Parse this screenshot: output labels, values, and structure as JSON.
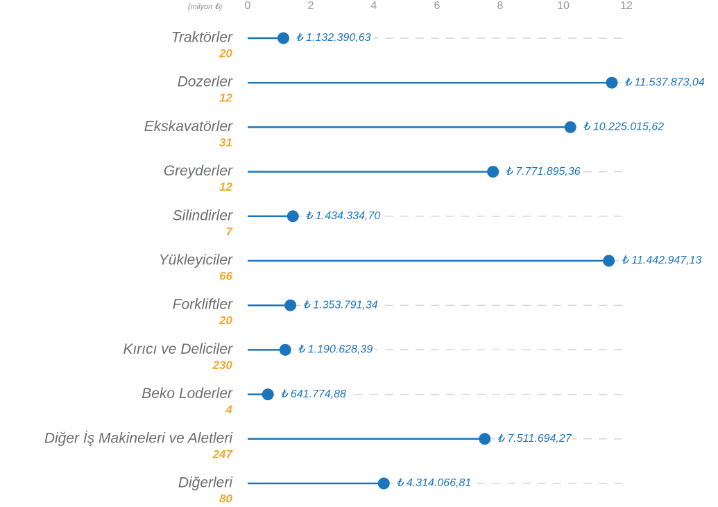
{
  "chart_data": {
    "type": "lollipop",
    "x_axis_label": "(milyon ₺)",
    "categories": [
      "Traktörler",
      "Dozerler",
      "Ekskavatörler",
      "Greyderler",
      "Silindirler",
      "Yükleyiciler",
      "Forkliftler",
      "Kırıcı ve Deliciler",
      "Beko Loderler",
      "Diğer İş Makineleri ve Aletleri",
      "Diğerleri"
    ],
    "counts": [
      20,
      12,
      31,
      12,
      7,
      66,
      20,
      230,
      4,
      247,
      80
    ],
    "values": [
      1.13239063,
      11.53787304,
      10.22501562,
      7.77189536,
      1.4343347,
      11.44294713,
      1.35379134,
      1.19062839,
      0.64177488,
      7.51169427,
      4.31406681
    ],
    "value_labels": [
      "₺ 1.132.390,63",
      "₺ 11.537.873,04",
      "₺ 10.225.015,62",
      "₺ 7.771.895,36",
      "₺ 1.434.334,70",
      "₺ 11.442.947,13",
      "₺ 1.353.791,34",
      "₺ 1.190.628,39",
      "₺ 641.774,88",
      "₺ 7.511.694,27",
      "₺ 4.314.066,81"
    ],
    "color": "#1a75bc",
    "xlim": [
      0,
      12
    ],
    "xticks": [
      0,
      2,
      4,
      6,
      8,
      10,
      12
    ]
  }
}
